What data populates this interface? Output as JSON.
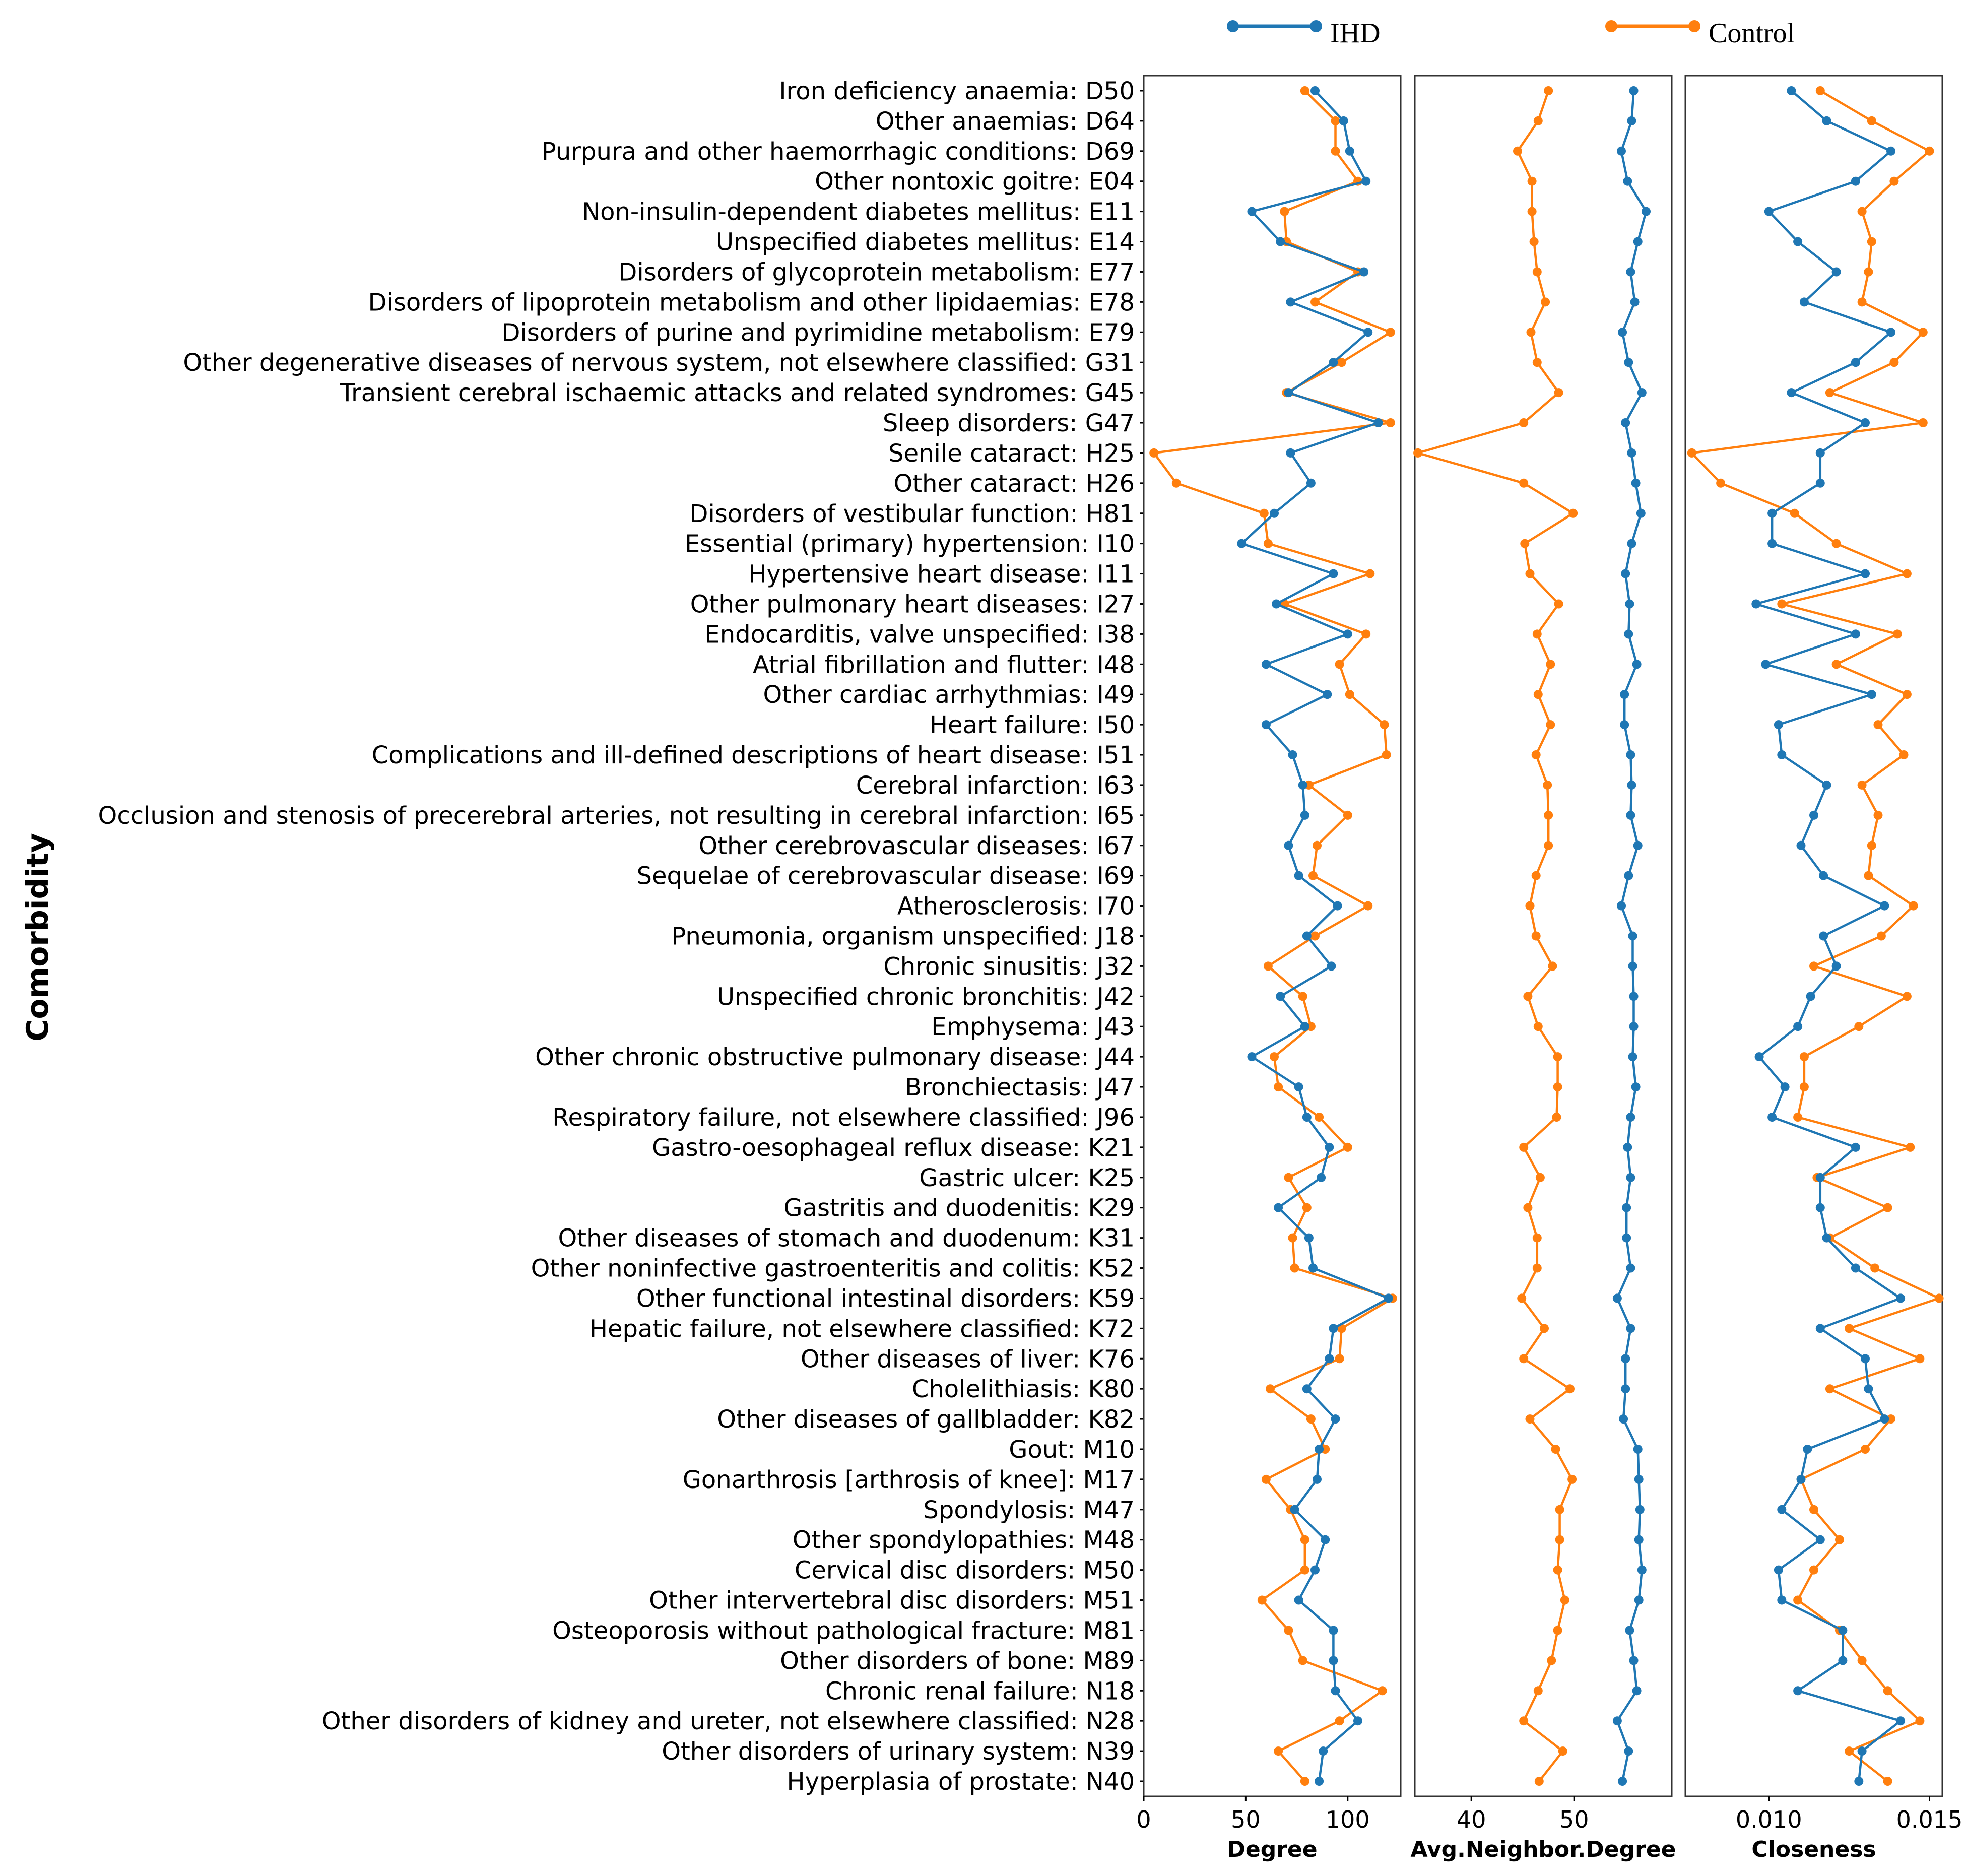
{
  "chart_data": {
    "type": "line",
    "orientation": "horizontal-categories-on-y",
    "ylabel": "Comorbidity",
    "legend": [
      {
        "name": "IHD",
        "color": "#1f77b4"
      },
      {
        "name": "Control",
        "color": "#ff7f0e"
      }
    ],
    "categories": [
      "Iron deficiency anaemia: D50",
      "Other anaemias: D64",
      "Purpura and other haemorrhagic conditions: D69",
      "Other nontoxic goitre: E04",
      "Non-insulin-dependent diabetes mellitus: E11",
      "Unspecified diabetes mellitus: E14",
      "Disorders of glycoprotein metabolism: E77",
      "Disorders of lipoprotein metabolism and other lipidaemias: E78",
      "Disorders of purine and pyrimidine metabolism: E79",
      "Other degenerative diseases of nervous system, not elsewhere classified: G31",
      "Transient cerebral ischaemic attacks and related syndromes: G45",
      "Sleep disorders: G47",
      "Senile cataract: H25",
      "Other cataract: H26",
      "Disorders of vestibular function: H81",
      "Essential (primary) hypertension: I10",
      "Hypertensive heart disease: I11",
      "Other pulmonary heart diseases: I27",
      "Endocarditis, valve unspecified: I38",
      "Atrial fibrillation and flutter: I48",
      "Other cardiac arrhythmias: I49",
      "Heart failure: I50",
      "Complications and ill-defined descriptions of heart disease: I51",
      "Cerebral infarction: I63",
      "Occlusion and stenosis of precerebral arteries, not resulting in cerebral infarction: I65",
      "Other cerebrovascular diseases: I67",
      "Sequelae of cerebrovascular disease: I69",
      "Atherosclerosis: I70",
      "Pneumonia, organism unspecified: J18",
      "Chronic sinusitis: J32",
      "Unspecified chronic bronchitis: J42",
      "Emphysema: J43",
      "Other chronic obstructive pulmonary disease: J44",
      "Bronchiectasis: J47",
      "Respiratory failure, not elsewhere classified: J96",
      "Gastro-oesophageal reflux disease: K21",
      "Gastric ulcer: K25",
      "Gastritis and duodenitis: K29",
      "Other diseases of stomach and duodenum: K31",
      "Other noninfective gastroenteritis and colitis: K52",
      "Other functional intestinal disorders: K59",
      "Hepatic failure, not elsewhere classified: K72",
      "Other diseases of liver: K76",
      "Cholelithiasis: K80",
      "Other diseases of gallbladder: K82",
      "Gout: M10",
      "Gonarthrosis [arthrosis of knee]: M17",
      "Spondylosis: M47",
      "Other spondylopathies: M48",
      "Cervical disc disorders: M50",
      "Other intervertebral disc disorders: M51",
      "Osteoporosis without pathological fracture: M81",
      "Other disorders of bone: M89",
      "Chronic renal failure: N18",
      "Other disorders of kidney and ureter, not elsewhere classified: N28",
      "Other disorders of urinary system: N39",
      "Hyperplasia of prostate: N40"
    ],
    "panels": [
      {
        "xlabel": "Degree",
        "xlim": [
          0,
          126
        ],
        "ticks": [
          0,
          50,
          100
        ],
        "tick_labels": [
          "0",
          "50",
          "100"
        ],
        "series": [
          {
            "name": "IHD",
            "values": [
              84,
              98,
              101,
              109,
              53,
              67,
              108,
              72,
              110,
              93,
              71,
              115,
              72,
              82,
              64,
              48,
              93,
              65,
              100,
              60,
              90,
              60,
              73,
              78,
              79,
              71,
              76,
              95,
              80,
              92,
              67,
              79,
              53,
              76,
              80,
              91,
              87,
              66,
              81,
              83,
              120,
              93,
              91,
              80,
              94,
              86,
              85,
              74,
              89,
              84,
              76,
              93,
              93,
              94,
              105,
              88,
              86
            ]
          },
          {
            "name": "Control",
            "values": [
              79,
              94,
              94,
              105,
              69,
              70,
              105,
              84,
              121,
              97,
              70,
              121,
              5,
              16,
              59,
              61,
              111,
              69,
              109,
              96,
              101,
              118,
              119,
              81,
              100,
              85,
              83,
              110,
              84,
              61,
              78,
              82,
              64,
              66,
              86,
              100,
              71,
              80,
              73,
              74,
              122,
              97,
              96,
              62,
              82,
              89,
              60,
              72,
              79,
              79,
              58,
              71,
              78,
              117,
              96,
              66,
              79
            ]
          }
        ]
      },
      {
        "xlabel": "Avg.Neighbor.Degree",
        "xlim": [
          34.5,
          59.5
        ],
        "ticks": [
          40,
          50
        ],
        "tick_labels": [
          "40",
          "50"
        ],
        "series": [
          {
            "name": "IHD",
            "values": [
              55.8,
              55.6,
              54.6,
              55.2,
              57.0,
              56.2,
              55.5,
              55.9,
              54.7,
              55.3,
              56.6,
              55.0,
              55.6,
              56.0,
              56.5,
              55.6,
              55.0,
              55.4,
              55.3,
              56.1,
              54.9,
              54.9,
              55.5,
              55.6,
              55.5,
              56.2,
              55.3,
              54.6,
              55.7,
              55.7,
              55.8,
              55.8,
              55.7,
              56.0,
              55.5,
              55.2,
              55.5,
              55.1,
              55.1,
              55.5,
              54.2,
              55.5,
              55.0,
              55.0,
              54.8,
              56.2,
              56.3,
              56.4,
              56.3,
              56.6,
              56.3,
              55.4,
              55.8,
              56.1,
              54.2,
              55.3,
              54.7
            ]
          },
          {
            "name": "Control",
            "values": [
              47.5,
              46.5,
              44.5,
              45.9,
              45.9,
              46.1,
              46.4,
              47.2,
              45.8,
              46.4,
              48.5,
              45.1,
              34.8,
              45.1,
              49.9,
              45.2,
              45.7,
              48.5,
              46.4,
              47.7,
              46.5,
              47.7,
              46.3,
              47.4,
              47.5,
              47.5,
              46.3,
              45.7,
              46.3,
              47.9,
              45.5,
              46.5,
              48.4,
              48.4,
              48.3,
              45.1,
              46.7,
              45.5,
              46.4,
              46.4,
              44.9,
              47.1,
              45.1,
              49.6,
              45.7,
              48.2,
              49.8,
              48.6,
              48.6,
              48.4,
              49.1,
              48.4,
              47.8,
              46.5,
              45.1,
              48.9,
              46.6
            ]
          }
        ]
      },
      {
        "xlabel": "Closeness",
        "xlim": [
          0.0074,
          0.0154
        ],
        "ticks": [
          0.01,
          0.015
        ],
        "tick_labels": [
          "0.010",
          "0.015"
        ],
        "series": [
          {
            "name": "IHD",
            "values": [
              0.0107,
              0.0118,
              0.0138,
              0.0127,
              0.01,
              0.0109,
              0.0121,
              0.0111,
              0.0138,
              0.0127,
              0.0107,
              0.013,
              0.0116,
              0.0116,
              0.0101,
              0.0101,
              0.013,
              0.0096,
              0.0127,
              0.0099,
              0.0132,
              0.0103,
              0.0104,
              0.0118,
              0.0114,
              0.011,
              0.0117,
              0.0136,
              0.0117,
              0.0121,
              0.0113,
              0.0109,
              0.0097,
              0.0105,
              0.0101,
              0.0127,
              0.0116,
              0.0116,
              0.0118,
              0.0127,
              0.0141,
              0.0116,
              0.013,
              0.0131,
              0.0136,
              0.0112,
              0.011,
              0.0104,
              0.0116,
              0.0103,
              0.0104,
              0.0123,
              0.0123,
              0.0109,
              0.0141,
              0.0129,
              0.0128
            ]
          },
          {
            "name": "Control",
            "values": [
              0.0116,
              0.0132,
              0.015,
              0.0139,
              0.0129,
              0.0132,
              0.0131,
              0.0129,
              0.0148,
              0.0139,
              0.0119,
              0.0148,
              0.0076,
              0.0085,
              0.0108,
              0.0121,
              0.0143,
              0.0104,
              0.014,
              0.0121,
              0.0143,
              0.0134,
              0.0142,
              0.0129,
              0.0134,
              0.0132,
              0.0131,
              0.0145,
              0.0135,
              0.0114,
              0.0143,
              0.0128,
              0.0111,
              0.0111,
              0.0109,
              0.0144,
              0.0115,
              0.0137,
              0.0119,
              0.0133,
              0.0153,
              0.0125,
              0.0147,
              0.0119,
              0.0138,
              0.013,
              0.011,
              0.0114,
              0.0122,
              0.0114,
              0.0109,
              0.0122,
              0.0129,
              0.0137,
              0.0147,
              0.0125,
              0.0137
            ]
          }
        ]
      }
    ]
  }
}
